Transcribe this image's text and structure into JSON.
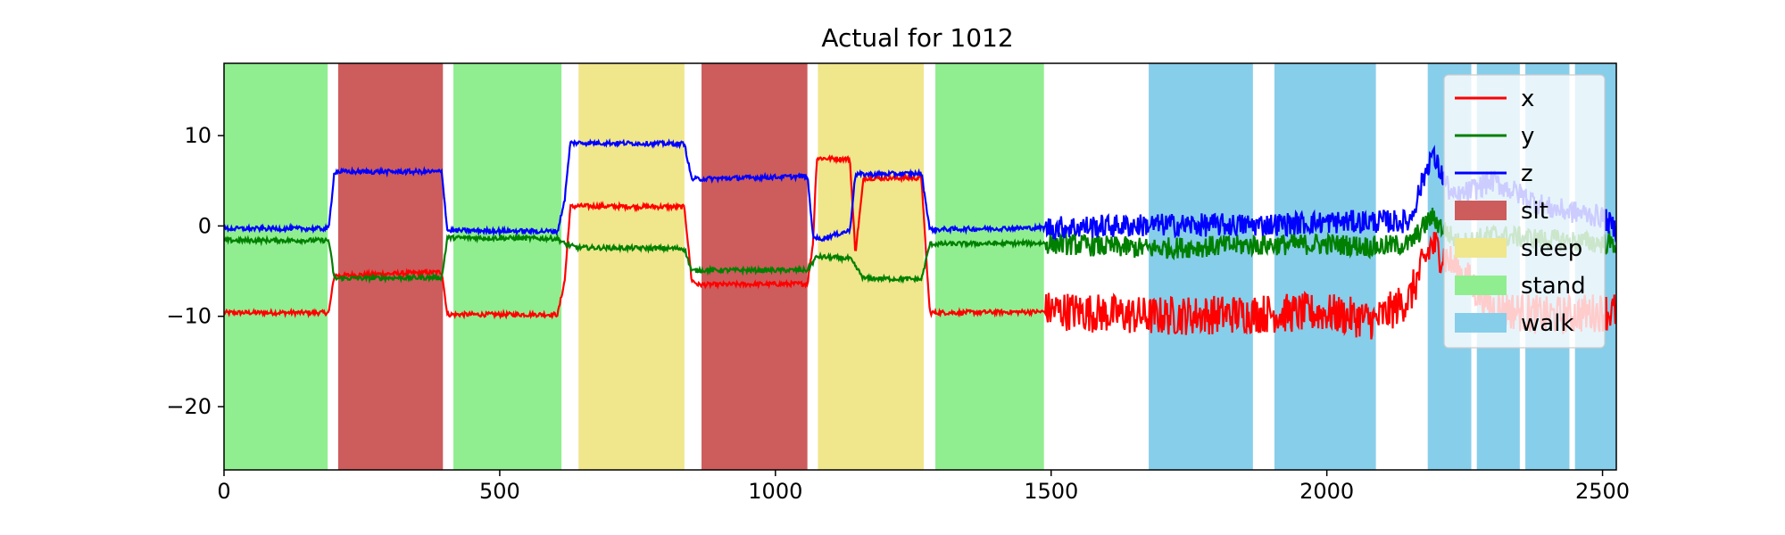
{
  "chart_data": {
    "type": "line",
    "title": "Actual for 1012",
    "xlabel": "",
    "ylabel": "",
    "xlim": [
      0,
      2525
    ],
    "ylim": [
      -27,
      18
    ],
    "xticks": [
      0,
      500,
      1000,
      1500,
      2000,
      2500
    ],
    "xtick_labels": [
      "0",
      "500",
      "1000",
      "1500",
      "2000",
      "2500"
    ],
    "yticks": [
      10,
      0,
      -10,
      -20
    ],
    "ytick_labels": [
      "10",
      "0",
      "−10",
      "−20"
    ],
    "grid": false,
    "legend_position": "top-right",
    "activities": [
      {
        "label": "stand",
        "start": 0,
        "end": 188
      },
      {
        "label": "sit",
        "start": 207,
        "end": 397
      },
      {
        "label": "stand",
        "start": 416,
        "end": 612
      },
      {
        "label": "sleep",
        "start": 643,
        "end": 835
      },
      {
        "label": "sit",
        "start": 866,
        "end": 1058
      },
      {
        "label": "sleep",
        "start": 1077,
        "end": 1269
      },
      {
        "label": "stand",
        "start": 1290,
        "end": 1487
      },
      {
        "label": "walk",
        "start": 1677,
        "end": 1866
      },
      {
        "label": "walk",
        "start": 1905,
        "end": 2089
      },
      {
        "label": "walk",
        "start": 2183,
        "end": 2262
      },
      {
        "label": "walk",
        "start": 2272,
        "end": 2350
      },
      {
        "label": "walk",
        "start": 2360,
        "end": 2440
      },
      {
        "label": "walk",
        "start": 2450,
        "end": 2525
      }
    ],
    "activity_colors": {
      "sit": "#cd5c5c",
      "sleep": "#f0e68c",
      "stand": "#90ee90",
      "walk": "#87ceeb"
    },
    "series": [
      {
        "name": "x",
        "color": "#ff0000",
        "points": [
          [
            0,
            -9.6
          ],
          [
            190,
            -9.6
          ],
          [
            200,
            -5.5
          ],
          [
            395,
            -5.1
          ],
          [
            405,
            -9.8
          ],
          [
            605,
            -9.8
          ],
          [
            618,
            -6
          ],
          [
            628,
            2.1
          ],
          [
            640,
            2.2
          ],
          [
            835,
            2.1
          ],
          [
            848,
            -6
          ],
          [
            860,
            -6.5
          ],
          [
            1058,
            -6.4
          ],
          [
            1068,
            -2
          ],
          [
            1075,
            7.5
          ],
          [
            1135,
            7.4
          ],
          [
            1145,
            -3
          ],
          [
            1160,
            5.3
          ],
          [
            1265,
            5.3
          ],
          [
            1272,
            -2
          ],
          [
            1280,
            -9.6
          ],
          [
            1487,
            -9.5
          ],
          [
            1500,
            -9.3
          ],
          [
            1677,
            -10
          ],
          [
            1866,
            -9.7
          ],
          [
            2000,
            -9.6
          ],
          [
            2089,
            -10.5
          ],
          [
            2150,
            -8
          ],
          [
            2190,
            -2
          ],
          [
            2240,
            -5
          ],
          [
            2300,
            -9
          ],
          [
            2400,
            -10
          ],
          [
            2500,
            -9.5
          ],
          [
            2525,
            -9.5
          ]
        ],
        "noisy_start": 1490,
        "noise": 2.2
      },
      {
        "name": "y",
        "color": "#008000",
        "points": [
          [
            0,
            -1.6
          ],
          [
            190,
            -1.6
          ],
          [
            200,
            -5.8
          ],
          [
            395,
            -5.7
          ],
          [
            405,
            -1.3
          ],
          [
            605,
            -1.4
          ],
          [
            618,
            -2
          ],
          [
            640,
            -2.4
          ],
          [
            835,
            -2.5
          ],
          [
            848,
            -5
          ],
          [
            860,
            -4.9
          ],
          [
            1058,
            -4.9
          ],
          [
            1075,
            -3.4
          ],
          [
            1135,
            -3.6
          ],
          [
            1160,
            -5.8
          ],
          [
            1265,
            -5.9
          ],
          [
            1280,
            -2
          ],
          [
            1487,
            -1.9
          ],
          [
            1677,
            -2.5
          ],
          [
            1866,
            -2.1
          ],
          [
            2000,
            -2
          ],
          [
            2089,
            -2.3
          ],
          [
            2150,
            -2
          ],
          [
            2190,
            1
          ],
          [
            2240,
            -2
          ],
          [
            2300,
            -1
          ],
          [
            2400,
            -1.5
          ],
          [
            2525,
            -2
          ]
        ],
        "noisy_start": 1490,
        "noise": 1.2
      },
      {
        "name": "z",
        "color": "#0000ff",
        "points": [
          [
            0,
            -0.3
          ],
          [
            190,
            -0.3
          ],
          [
            200,
            6
          ],
          [
            395,
            6
          ],
          [
            405,
            -0.5
          ],
          [
            605,
            -0.6
          ],
          [
            618,
            3
          ],
          [
            628,
            9.2
          ],
          [
            640,
            9.2
          ],
          [
            835,
            9.1
          ],
          [
            848,
            5.2
          ],
          [
            860,
            5.2
          ],
          [
            1058,
            5.5
          ],
          [
            1068,
            -1
          ],
          [
            1078,
            -1.5
          ],
          [
            1135,
            -0.5
          ],
          [
            1145,
            5.7
          ],
          [
            1265,
            5.8
          ],
          [
            1280,
            -0.4
          ],
          [
            1487,
            -0.2
          ],
          [
            1677,
            0.1
          ],
          [
            1866,
            0.1
          ],
          [
            2000,
            0.4
          ],
          [
            2089,
            0.5
          ],
          [
            2150,
            0.5
          ],
          [
            2190,
            8
          ],
          [
            2230,
            3
          ],
          [
            2300,
            5
          ],
          [
            2400,
            2
          ],
          [
            2500,
            1
          ],
          [
            2525,
            -0.5
          ]
        ],
        "noisy_start": 1490,
        "noise": 1.3
      }
    ],
    "legend": [
      {
        "label": "x",
        "kind": "line",
        "color": "#ff0000"
      },
      {
        "label": "y",
        "kind": "line",
        "color": "#008000"
      },
      {
        "label": "z",
        "kind": "line",
        "color": "#0000ff"
      },
      {
        "label": "sit",
        "kind": "patch",
        "color": "#cd5c5c"
      },
      {
        "label": "sleep",
        "kind": "patch",
        "color": "#f0e68c"
      },
      {
        "label": "stand",
        "kind": "patch",
        "color": "#90ee90"
      },
      {
        "label": "walk",
        "kind": "patch",
        "color": "#87ceeb"
      }
    ]
  }
}
